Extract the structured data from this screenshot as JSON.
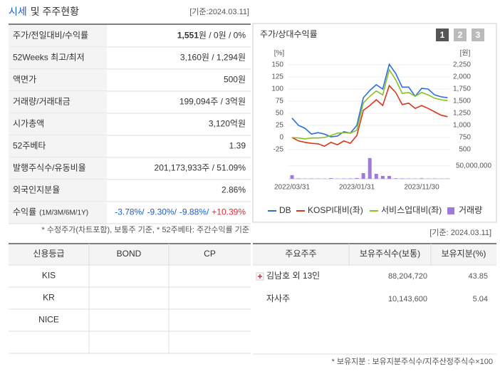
{
  "header": {
    "title_highlight": "시세",
    "title_rest": "및 주주현황",
    "date": "[기준:2024.03.11]"
  },
  "price_table": {
    "rows": [
      {
        "label": "주가/전일대비/수익률",
        "value_parts": [
          "1,551",
          "원 / 0원 / 0%"
        ]
      },
      {
        "label": "52Weeks 최고/최저",
        "value": "3,160원 / 1,294원"
      },
      {
        "label": "액면가",
        "value": "500원"
      },
      {
        "label": "거래량/거래대금",
        "value": "199,094주 / 3억원"
      },
      {
        "label": "시가총액",
        "value": "3,120억원"
      },
      {
        "label": "52주베타",
        "value": "1.39"
      },
      {
        "label": "발행주식수/유동비율",
        "value": "201,173,933주 / 51.09%"
      },
      {
        "label": "외국인지분율",
        "value": "2.86%"
      },
      {
        "label": "수익률",
        "label_sub": "(1M/3M/6M/1Y)",
        "value_parts": [
          "-3.78%/",
          "-9.30%/",
          "-9.88%/",
          "+10.39%"
        ]
      }
    ]
  },
  "price_note": "* 수정주가(차트포함), 보통주 기준, * 52주베타: 주간수익률 기준",
  "chart_panel": {
    "title": "주가/상대수익률",
    "buttons": [
      "1",
      "2",
      "3"
    ]
  },
  "chart_data": {
    "type": "line",
    "y_label": "[%]",
    "y2_label": "[원]",
    "categories": [
      "2022/03/31",
      null,
      null,
      null,
      null,
      null,
      null,
      null,
      null,
      null,
      "2023/01/31",
      null,
      null,
      null,
      null,
      null,
      null,
      null,
      null,
      null,
      "2023/11/30",
      null,
      null,
      null,
      null
    ],
    "series": [
      {
        "name": "DB",
        "color": "#2a6fdb",
        "axis": "y2",
        "values": [
          1150,
          1000,
          940,
          820,
          850,
          820,
          765,
          780,
          870,
          840,
          1000,
          1570,
          1720,
          1840,
          1750,
          2260,
          2070,
          1790,
          1790,
          1600,
          1765,
          1750,
          1630,
          1590,
          1570
        ]
      },
      {
        "name": "KOSPI대비(좌)",
        "color": "#d9361c",
        "values": [
          0,
          -7,
          -10,
          -12,
          -13,
          -18,
          -10,
          -15,
          -7,
          -12,
          4,
          56,
          66,
          78,
          66,
          107,
          93,
          68,
          71,
          60,
          66,
          60,
          53,
          46,
          43
        ]
      },
      {
        "name": "서비스업대비(좌)",
        "color": "#8cbf26",
        "values": [
          0,
          -1,
          -3,
          -1,
          -1,
          0,
          4,
          9,
          10,
          9,
          15,
          71,
          85,
          96,
          88,
          140,
          119,
          91,
          93,
          85,
          93,
          88,
          81,
          78,
          76
        ]
      },
      {
        "name": "거래량",
        "color": "#a07ad8",
        "type": "bar",
        "axis": "volume",
        "values": [
          14000000,
          1500000,
          1000000,
          1200000,
          1000000,
          800000,
          2500000,
          1000000,
          1200000,
          1500000,
          3000000,
          22000000,
          80000000,
          19000000,
          11000000,
          11000000,
          2000000,
          1500000,
          1200000,
          1000000,
          2000000,
          1000000,
          1200000,
          800000,
          900000
        ]
      }
    ],
    "ylim": [
      -25,
      150
    ],
    "yticks": [
      -25,
      0,
      25,
      50,
      75,
      100,
      125,
      150
    ],
    "y2lim": [
      500,
      2250
    ],
    "y2ticks": [
      500,
      750,
      {
        "value": 1000,
        "label": "1,000"
      },
      {
        "value": 1250,
        "label": "1,250"
      },
      {
        "value": 1500,
        "label": "1,500"
      },
      {
        "value": 1750,
        "label": "1,750"
      },
      {
        "value": 2000,
        "label": "2,000"
      },
      {
        "value": 2250,
        "label": "2,250"
      }
    ],
    "volume_lim": [
      0,
      85000000
    ],
    "volume_ticks": [
      {
        "value": 50000000,
        "label": "50,000,000"
      }
    ],
    "grid": true,
    "legend": "bottom"
  },
  "shareholder_date": "[기준: 2024.03.11]",
  "credit_table": {
    "columns": [
      "신용등급",
      "BOND",
      "CP"
    ],
    "rows": [
      "KIS",
      "KR",
      "NICE"
    ]
  },
  "shareholder_table": {
    "columns": [
      "주요주주",
      "보유주식수(보통)",
      "보유지분(%)"
    ],
    "rows": [
      [
        "김남호 외 13인",
        "88,204,720",
        "43.85"
      ],
      [
        "자사주",
        "10,143,600",
        "5.04"
      ]
    ]
  },
  "shareholder_note": "* 보유지분 : 보유지분주식수/지주산정주식수×100"
}
